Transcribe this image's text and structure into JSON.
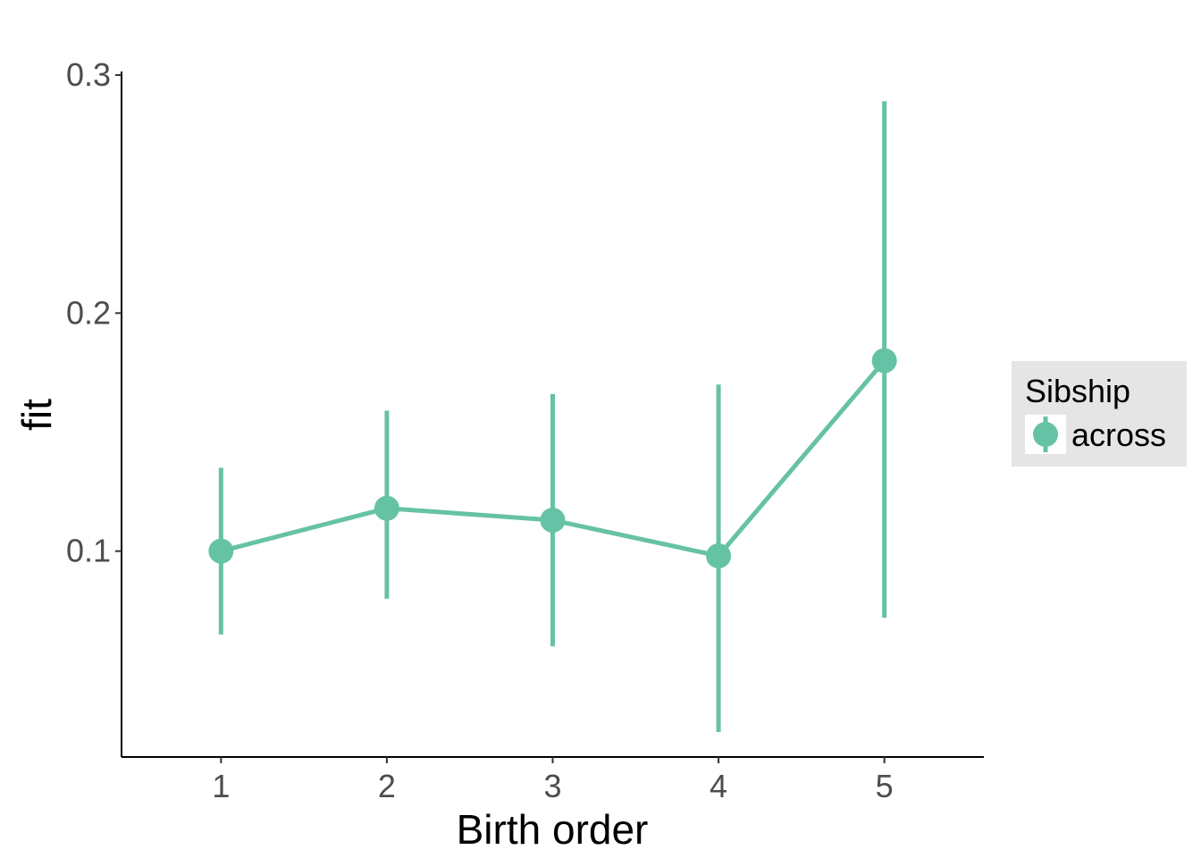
{
  "chart_data": {
    "type": "line",
    "title": "",
    "xlabel": "Birth order",
    "ylabel": "fit",
    "x": [
      1,
      2,
      3,
      4,
      5
    ],
    "xlim": [
      0.4,
      5.6
    ],
    "ylim": [
      0.0135,
      0.3015
    ],
    "y_ticks": [
      0.1,
      0.2,
      0.3
    ],
    "y_tick_labels": [
      "0.1",
      "0.2",
      "0.3"
    ],
    "x_ticks": [
      1,
      2,
      3,
      4,
      5
    ],
    "x_tick_labels": [
      "1",
      "2",
      "3",
      "4",
      "5"
    ],
    "grid": false,
    "legend": {
      "title": "Sibship",
      "position": "right",
      "background": "#e5e5e5"
    },
    "series": [
      {
        "name": "across",
        "color": "#66c2a5",
        "values": [
          0.1,
          0.118,
          0.113,
          0.098,
          0.18
        ],
        "lower": [
          0.065,
          0.08,
          0.06,
          0.024,
          0.072
        ],
        "upper": [
          0.135,
          0.159,
          0.166,
          0.17,
          0.289
        ]
      }
    ]
  }
}
